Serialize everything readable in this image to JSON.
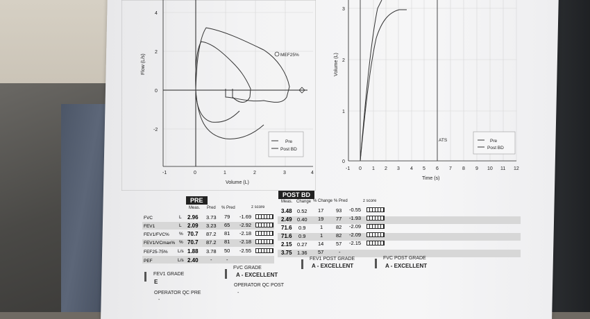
{
  "scene": {
    "paper_color": "#f4f4f5",
    "ink_color": "#222222"
  },
  "flow_volume_plot": {
    "ylabel": "Flow (L/s)",
    "xlabel": "Volume (L)",
    "y_ticks": [
      "4",
      "2",
      "0",
      "-2"
    ],
    "x_ticks": [
      "-1",
      "0",
      "1",
      "2",
      "3",
      "4"
    ],
    "annotation": "MEF25%",
    "legend": {
      "pre": "Pre",
      "post": "Post BD"
    }
  },
  "volume_time_plot": {
    "ylabel": "Volume (L)",
    "xlabel": "Time (s)",
    "y_ticks": [
      "3",
      "2",
      "1",
      "0"
    ],
    "x_ticks": [
      "-1",
      "0",
      "1",
      "2",
      "3",
      "4",
      "5",
      "6",
      "7",
      "8",
      "9",
      "10",
      "11",
      "12"
    ],
    "annotation": "ATS",
    "legend": {
      "pre": "Pre",
      "post": "Post BD"
    }
  },
  "table": {
    "pre_header": "PRE",
    "post_header": "POST BD",
    "pre_columns": [
      "Meas.",
      "Pred",
      "% Pred",
      "z score"
    ],
    "post_columns": [
      "Meas.",
      "Change",
      "% Change",
      "% Pred",
      "z score"
    ],
    "rows": [
      {
        "label": "FVC",
        "unit": "L",
        "meas": "2.96",
        "pred": "3.73",
        "pct_pred": "79",
        "z": "-1.69",
        "post_meas": "3.48",
        "change": "0.52",
        "pct_change": "17",
        "post_pct_pred": "93",
        "post_z": "-0.55"
      },
      {
        "label": "FEV1",
        "unit": "L",
        "meas": "2.09",
        "pred": "3.23",
        "pct_pred": "65",
        "z": "-2.92",
        "post_meas": "2.49",
        "change": "0.40",
        "pct_change": "19",
        "post_pct_pred": "77",
        "post_z": "-1.93"
      },
      {
        "label": "FEV1/FVC%",
        "unit": "%",
        "meas": "70.7",
        "pred": "87.2",
        "pct_pred": "81",
        "z": "-2.18",
        "post_meas": "71.6",
        "change": "0.9",
        "pct_change": "1",
        "post_pct_pred": "82",
        "post_z": "-2.09"
      },
      {
        "label": "FEV1/VCmax%",
        "unit": "%",
        "meas": "70.7",
        "pred": "87.2",
        "pct_pred": "81",
        "z": "-2.18",
        "post_meas": "71.6",
        "change": "0.9",
        "pct_change": "1",
        "post_pct_pred": "82",
        "post_z": "-2.09"
      },
      {
        "label": "FEF25-75%",
        "unit": "L/s",
        "meas": "1.88",
        "pred": "3.78",
        "pct_pred": "50",
        "z": "-2.55",
        "post_meas": "2.15",
        "change": "0.27",
        "pct_change": "14",
        "post_pct_pred": "57",
        "post_z": "-2.15"
      },
      {
        "label": "PEF",
        "unit": "L/s",
        "meas": "2.40",
        "pred": "-",
        "pct_pred": "-",
        "z": "",
        "post_meas": "3.75",
        "change": "1.36",
        "pct_change": "57",
        "post_pct_pred": "-",
        "post_z": ""
      }
    ]
  },
  "grades": {
    "fev1_grade_label": "FEV1 GRADE",
    "fev1_grade_value": "E",
    "fvc_grade_label": "FVC GRADE",
    "fvc_grade_value": "A - EXCELLENT",
    "fev1_post_grade_label": "FEV1 POST GRADE",
    "fev1_post_grade_value": "A - EXCELLENT",
    "fvc_post_grade_label": "FVC POST GRADE",
    "fvc_post_grade_value": "A - EXCELLENT",
    "operator_qc_pre": "OPERATOR QC PRE",
    "operator_qc_post": "OPERATOR QC POST",
    "dash": "-"
  }
}
